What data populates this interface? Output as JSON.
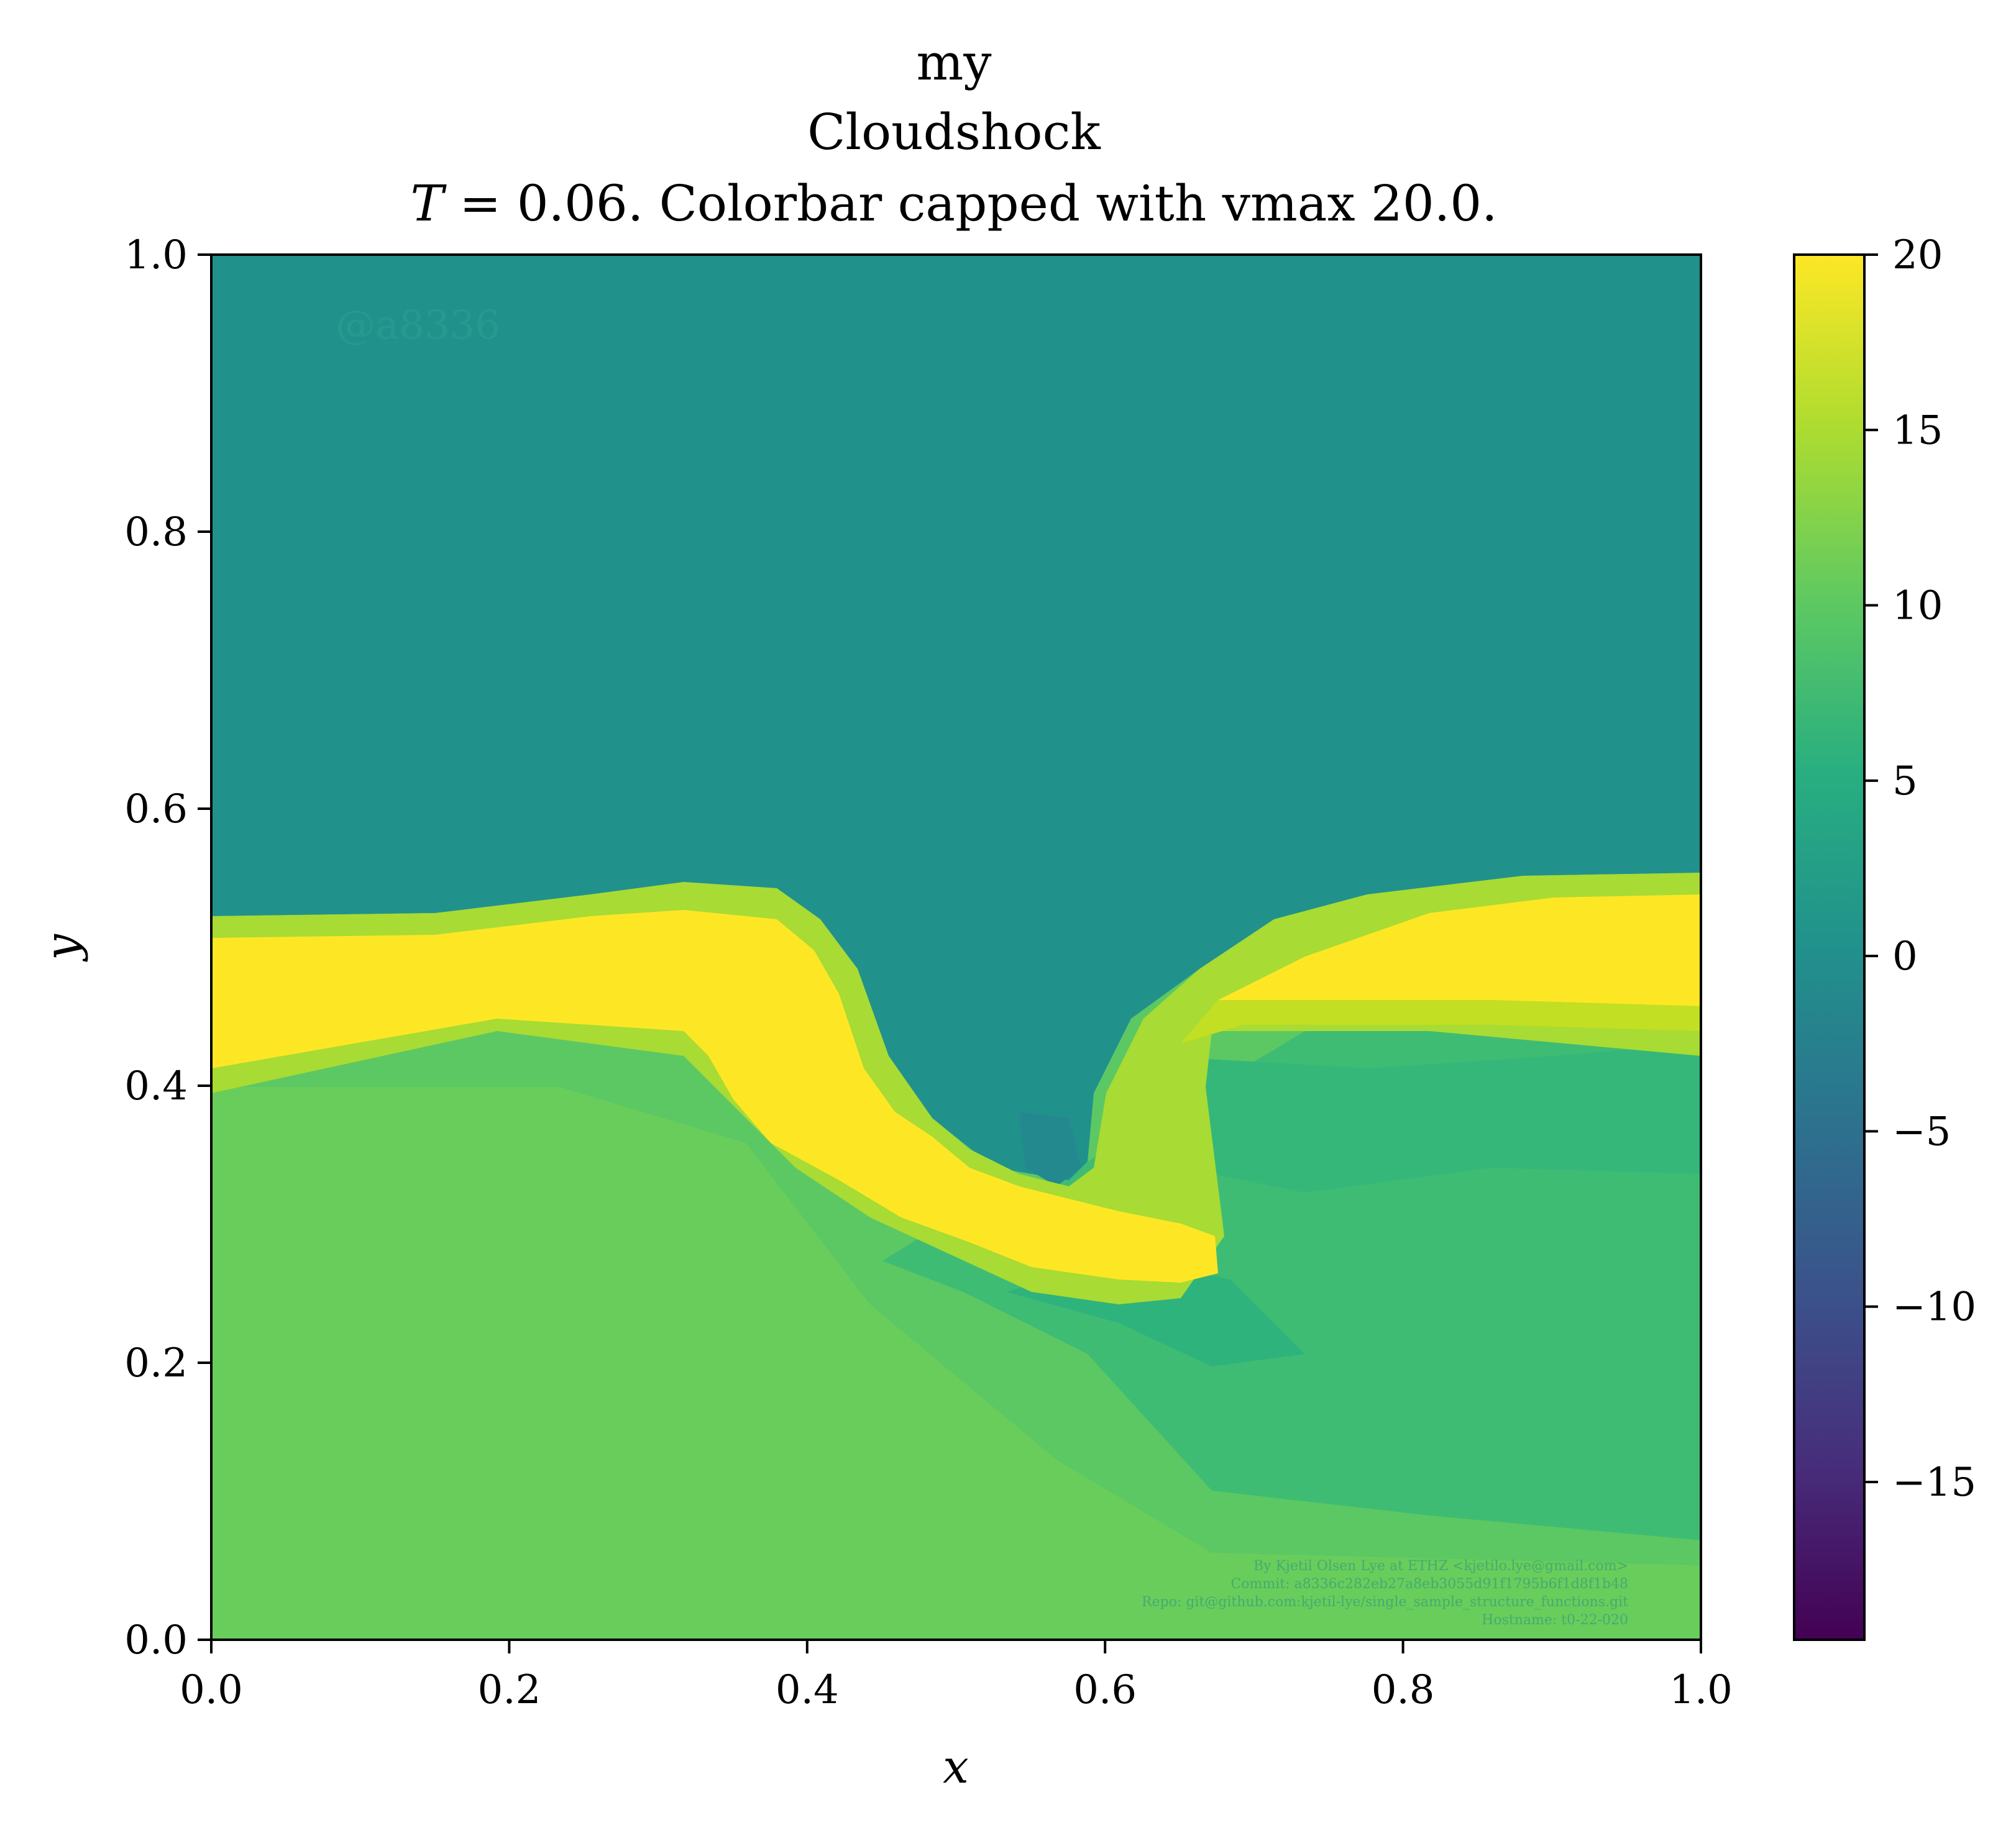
{
  "chart_data": {
    "type": "heatmap",
    "title_lines": [
      "my",
      "Cloudshock",
      "T = 0.06. Colorbar capped with vmax 20.0."
    ],
    "title_t_symbol": "T",
    "title_t_rest": " = 0.06. Colorbar capped with vmax 20.0.",
    "xlabel": "x",
    "ylabel": "y",
    "xlim": [
      0.0,
      1.0
    ],
    "ylim": [
      0.0,
      1.0
    ],
    "x_ticks": [
      0.0,
      0.2,
      0.4,
      0.6,
      0.8,
      1.0
    ],
    "y_ticks": [
      0.0,
      0.2,
      0.4,
      0.6,
      0.8,
      1.0
    ],
    "x_tick_labels": [
      "0.0",
      "0.2",
      "0.4",
      "0.6",
      "0.8",
      "1.0"
    ],
    "y_tick_labels": [
      "0.0",
      "0.2",
      "0.4",
      "0.6",
      "0.8",
      "1.0"
    ],
    "colorbar": {
      "colormap": "viridis",
      "vmin": -19.5,
      "vmax": 20.0,
      "ticks": [
        20,
        15,
        10,
        5,
        0,
        -5,
        -10,
        -15
      ],
      "tick_labels": [
        "20",
        "15",
        "10",
        "5",
        "0",
        "−5",
        "−10",
        "−15"
      ]
    },
    "grid": false,
    "field_description_regions": [
      {
        "region": "upper",
        "value": 0.0
      },
      {
        "region": "shock-band",
        "value": 20.0
      },
      {
        "region": "lower-left",
        "value": 12.0
      },
      {
        "region": "lower-right",
        "value": 7.0
      }
    ]
  },
  "watermark": {
    "tag": "@a8336",
    "footer_lines": [
      "By Kjetil Olsen Lye at ETHZ <kjetilo.lye@gmail.com>",
      "Commit: a8336c282eb27a8eb3055d91f1795b6f1d8f1b48",
      "Repo: git@github.com:kjetil-lye/single_sample_structure_functions.git",
      "Hostname: t0-22-020"
    ]
  },
  "colors": {
    "upper": "#21918c",
    "band": "#fde725",
    "lower_left": "#63cb5f",
    "lower_right": "#3fbc73"
  }
}
